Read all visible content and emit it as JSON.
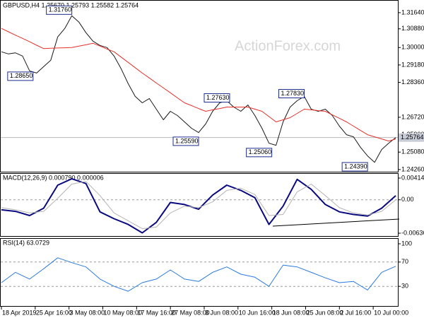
{
  "chart_data": [
    {
      "type": "line",
      "title": "GBPUSD,H4 1.25670 1.25793 1.25582 1.25764",
      "watermark": "ActionForex.com",
      "xlim": [
        0,
        56
      ],
      "xticks": [
        {
          "value": 0,
          "label": "18 Apr 2019"
        },
        {
          "value": 4.8,
          "label": "25 Apr 16:00"
        },
        {
          "value": 9.6,
          "label": "3 May 08:00"
        },
        {
          "value": 14.4,
          "label": "10 May 08:00"
        },
        {
          "value": 19.2,
          "label": "17 May 16:00"
        },
        {
          "value": 24,
          "label": "27 May 08:00"
        },
        {
          "value": 28.8,
          "label": "3 Jun 08:00"
        },
        {
          "value": 33.6,
          "label": "10 Jun 16:00"
        },
        {
          "value": 38.4,
          "label": "18 Jun 08:00"
        },
        {
          "value": 43.2,
          "label": "25 Jun 08:00"
        },
        {
          "value": 48,
          "label": "2 Jul 16:00"
        },
        {
          "value": 52.8,
          "label": "10 Jul 00:00"
        }
      ],
      "ylim": [
        1.2419,
        1.3217
      ],
      "yticks": [
        {
          "value": 1.3164,
          "label": "1.31640"
        },
        {
          "value": 1.3088,
          "label": "1.30880"
        },
        {
          "value": 1.3,
          "label": "1.30000"
        },
        {
          "value": 1.2918,
          "label": "1.29180"
        },
        {
          "value": 1.2836,
          "label": "1.28360"
        },
        {
          "value": 1.2672,
          "label": "1.26720"
        },
        {
          "value": 1.259,
          "label": "1.25900"
        },
        {
          "value": 1.2508,
          "label": "1.25080"
        },
        {
          "value": 1.2426,
          "label": "1.24260"
        }
      ],
      "series": [
        {
          "color": "#1a1a1a",
          "width": 1,
          "values": [
            1.298,
            1.297,
            1.2975,
            1.296,
            1.289,
            1.288,
            1.291,
            1.294,
            1.305,
            1.309,
            1.315,
            1.312,
            1.307,
            1.303,
            1.301,
            1.3,
            1.296,
            1.29,
            1.283,
            1.277,
            1.274,
            1.276,
            1.271,
            1.266,
            1.27,
            1.268,
            1.265,
            1.262,
            1.26,
            1.264,
            1.27,
            1.274,
            1.275,
            1.272,
            1.27,
            1.273,
            1.268,
            1.262,
            1.255,
            1.254,
            1.265,
            1.272,
            1.275,
            1.277,
            1.271,
            1.27,
            1.271,
            1.268,
            1.263,
            1.259,
            1.258,
            1.253,
            1.249,
            1.246,
            1.252,
            1.255,
            1.25764
          ]
        },
        {
          "color": "#e8302a",
          "width": 1,
          "values": [
            1.309,
            1.3074,
            1.3058,
            1.3043,
            1.3027,
            1.3011,
            1.2995,
            1.2997,
            1.2998,
            1.2999,
            1.3,
            1.3007,
            1.3013,
            1.302,
            1.3007,
            1.2993,
            1.298,
            1.2955,
            1.293,
            1.2905,
            1.288,
            1.2857,
            1.2833,
            1.281,
            1.2787,
            1.2763,
            1.274,
            1.2727,
            1.2713,
            1.27,
            1.2707,
            1.2713,
            1.272,
            1.272,
            1.272,
            1.272,
            1.271,
            1.27,
            1.2675,
            1.265,
            1.266,
            1.267,
            1.269,
            1.271,
            1.2707,
            1.2703,
            1.27,
            1.2683,
            1.2667,
            1.265,
            1.263,
            1.261,
            1.259,
            1.258,
            1.257,
            1.256,
            1.257
          ]
        }
      ],
      "last_price": {
        "value": 1.25764,
        "label": "1.25764"
      },
      "price_labels": [
        {
          "value": 1.3176,
          "label": "1.31760",
          "at": 10
        },
        {
          "value": 1.2865,
          "label": "1.28650",
          "at": 4.5
        },
        {
          "value": 1.2763,
          "label": "1.27630",
          "at": 28.8
        },
        {
          "value": 1.2559,
          "label": "1.25590",
          "at": 28
        },
        {
          "value": 1.2506,
          "label": "1.25060",
          "at": 38.4
        },
        {
          "value": 1.2783,
          "label": "1.27830",
          "at": 43
        },
        {
          "value": 1.2439,
          "label": "1.24390",
          "at": 52
        }
      ]
    },
    {
      "type": "line",
      "title": "MACD(12,26,9) 0.000790 0.000006",
      "xlim": [
        0,
        28
      ],
      "ylim": [
        -0.006365,
        0.004141
      ],
      "yticks": [
        0.004141,
        {
          "value": 0,
          "label": "0.00"
        },
        -0.006365
      ],
      "levels": [
        0
      ],
      "series": [
        {
          "color": "#0a0a80",
          "width": 2,
          "values": [
            -0.0019,
            -0.0022,
            -0.003,
            -0.0016,
            0.0028,
            0.004,
            0.0031,
            -0.0023,
            -0.0036,
            -0.0047,
            -0.0063,
            -0.0043,
            -0.0005,
            -0.0009,
            -0.0018,
            0.0009,
            0.0028,
            0.0018,
            0.0004,
            -0.0047,
            -0.0012,
            0.0039,
            0.002,
            -0.0009,
            -0.0023,
            -0.0028,
            -0.0031,
            -0.0016,
            0.00079
          ]
        },
        {
          "color": "#b4b4b4",
          "width": 1,
          "values": [
            -0.0015,
            -0.0019,
            -0.0025,
            -0.0022,
            0.0003,
            0.003,
            0.0035,
            0.0008,
            -0.0025,
            -0.004,
            -0.0055,
            -0.0052,
            -0.0025,
            -0.0012,
            -0.0015,
            -0.0004,
            0.0018,
            0.0022,
            0.001,
            -0.003,
            -0.0028,
            0.0015,
            0.003,
            0.0008,
            -0.0015,
            -0.0025,
            -0.0029,
            -0.0022,
            6e-06
          ]
        }
      ]
    },
    {
      "type": "line",
      "title": "RSI(14) 63.0729",
      "xlim": [
        0,
        28
      ],
      "ylim": [
        0,
        100
      ],
      "yticks": [
        100,
        70,
        30
      ],
      "levels": [
        70,
        30
      ],
      "series": [
        {
          "color": "#2a7be0",
          "width": 1,
          "values": [
            36,
            53,
            42,
            59,
            77,
            69,
            62,
            42,
            30,
            22,
            36,
            42,
            57,
            42,
            38,
            53,
            62,
            50,
            45,
            30,
            65,
            62,
            53,
            44,
            36,
            38,
            24,
            53,
            63.0729
          ]
        }
      ]
    }
  ]
}
